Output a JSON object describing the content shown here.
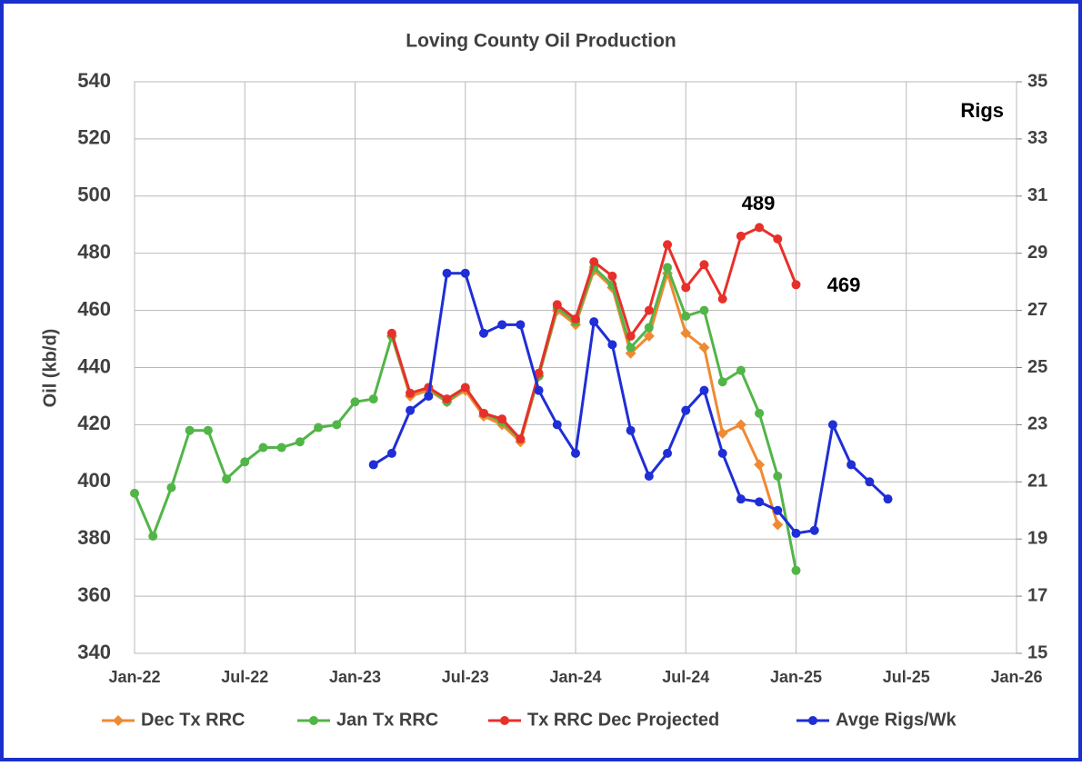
{
  "chart_data": {
    "type": "line",
    "title": "Loving County Oil Production",
    "y_label": "Oil (kb/d)",
    "y2_label": "Rigs",
    "xlim": [
      "2022-01",
      "2026-01"
    ],
    "xticks": [
      {
        "value": "2022-01",
        "label": "Jan-22"
      },
      {
        "value": "2022-07",
        "label": "Jul-22"
      },
      {
        "value": "2023-01",
        "label": "Jan-23"
      },
      {
        "value": "2023-07",
        "label": "Jul-23"
      },
      {
        "value": "2024-01",
        "label": "Jan-24"
      },
      {
        "value": "2024-07",
        "label": "Jul-24"
      },
      {
        "value": "2025-01",
        "label": "Jan-25"
      },
      {
        "value": "2025-07",
        "label": "Jul-25"
      },
      {
        "value": "2026-01",
        "label": "Jan-26"
      }
    ],
    "ylim": [
      340,
      540
    ],
    "yticks": [
      340,
      360,
      380,
      400,
      420,
      440,
      460,
      480,
      500,
      520,
      540
    ],
    "y2lim": [
      15,
      35
    ],
    "y2ticks": [
      15,
      17,
      19,
      21,
      23,
      25,
      27,
      29,
      31,
      33,
      35
    ],
    "grid": true,
    "legend": "bottom",
    "series": [
      {
        "name": "Dec Tx RRC",
        "color": "#ef8a32",
        "marker": "diamond",
        "x": [
          "2023-03",
          "2023-04",
          "2023-05",
          "2023-06",
          "2023-07",
          "2023-08",
          "2023-09",
          "2023-10",
          "2023-11",
          "2023-12",
          "2024-01",
          "2024-02",
          "2024-03",
          "2024-04",
          "2024-05",
          "2024-06",
          "2024-07",
          "2024-08",
          "2024-09",
          "2024-10",
          "2024-11",
          "2024-12"
        ],
        "values": [
          451,
          430,
          432,
          428,
          432,
          423,
          420,
          414,
          437,
          460,
          455,
          474,
          468,
          445,
          451,
          473,
          452,
          447,
          417,
          420,
          406,
          385
        ]
      },
      {
        "name": "Jan Tx RRC",
        "color": "#52b548",
        "marker": "circle",
        "x": [
          "2022-01",
          "2022-02",
          "2022-03",
          "2022-04",
          "2022-05",
          "2022-06",
          "2022-07",
          "2022-08",
          "2022-09",
          "2022-10",
          "2022-11",
          "2022-12",
          "2023-01",
          "2023-02",
          "2023-03",
          "2023-04",
          "2023-05",
          "2023-06",
          "2023-07",
          "2023-08",
          "2023-09",
          "2023-10",
          "2023-11",
          "2023-12",
          "2024-01",
          "2024-02",
          "2024-03",
          "2024-04",
          "2024-05",
          "2024-06",
          "2024-07",
          "2024-08",
          "2024-09",
          "2024-10",
          "2024-11",
          "2024-12",
          "2025-01"
        ],
        "values": [
          396,
          381,
          398,
          418,
          418,
          401,
          407,
          412,
          412,
          414,
          419,
          420,
          428,
          429,
          451,
          431,
          433,
          428,
          433,
          424,
          421,
          415,
          437,
          461,
          456,
          475,
          469,
          447,
          454,
          475,
          458,
          460,
          435,
          439,
          424,
          402,
          369
        ]
      },
      {
        "name": "Tx RRC Dec Projected",
        "color": "#e8302a",
        "marker": "circle",
        "x": [
          "2023-03",
          "2023-04",
          "2023-05",
          "2023-06",
          "2023-07",
          "2023-08",
          "2023-09",
          "2023-10",
          "2023-11",
          "2023-12",
          "2024-01",
          "2024-02",
          "2024-03",
          "2024-04",
          "2024-05",
          "2024-06",
          "2024-07",
          "2024-08",
          "2024-09",
          "2024-10",
          "2024-11",
          "2024-12",
          "2025-01"
        ],
        "values": [
          452,
          431,
          433,
          429,
          433,
          424,
          422,
          415,
          438,
          462,
          457,
          477,
          472,
          451,
          460,
          483,
          468,
          476,
          464,
          486,
          489,
          485,
          469
        ]
      },
      {
        "name": "Avge Rigs/Wk",
        "color": "#1f2ed6",
        "marker": "circle",
        "axis": "y2",
        "x": [
          "2023-02",
          "2023-03",
          "2023-04",
          "2023-05",
          "2023-06",
          "2023-07",
          "2023-08",
          "2023-09",
          "2023-10",
          "2023-11",
          "2023-12",
          "2024-01",
          "2024-02",
          "2024-03",
          "2024-04",
          "2024-05",
          "2024-06",
          "2024-07",
          "2024-08",
          "2024-09",
          "2024-10",
          "2024-11",
          "2024-12",
          "2025-01",
          "2025-02",
          "2025-03",
          "2025-04",
          "2025-05",
          "2025-06"
        ],
        "values": [
          21.6,
          22.0,
          23.5,
          24.0,
          28.3,
          28.3,
          26.2,
          26.5,
          26.5,
          24.2,
          23.0,
          22.0,
          26.6,
          25.8,
          22.8,
          21.2,
          22.0,
          23.5,
          24.2,
          22.0,
          20.4,
          20.3,
          20.0,
          19.2,
          19.3,
          23.0,
          21.6,
          21.0,
          20.4
        ]
      }
    ],
    "annotations": [
      {
        "text": "489"
      },
      {
        "text": "469"
      }
    ]
  }
}
